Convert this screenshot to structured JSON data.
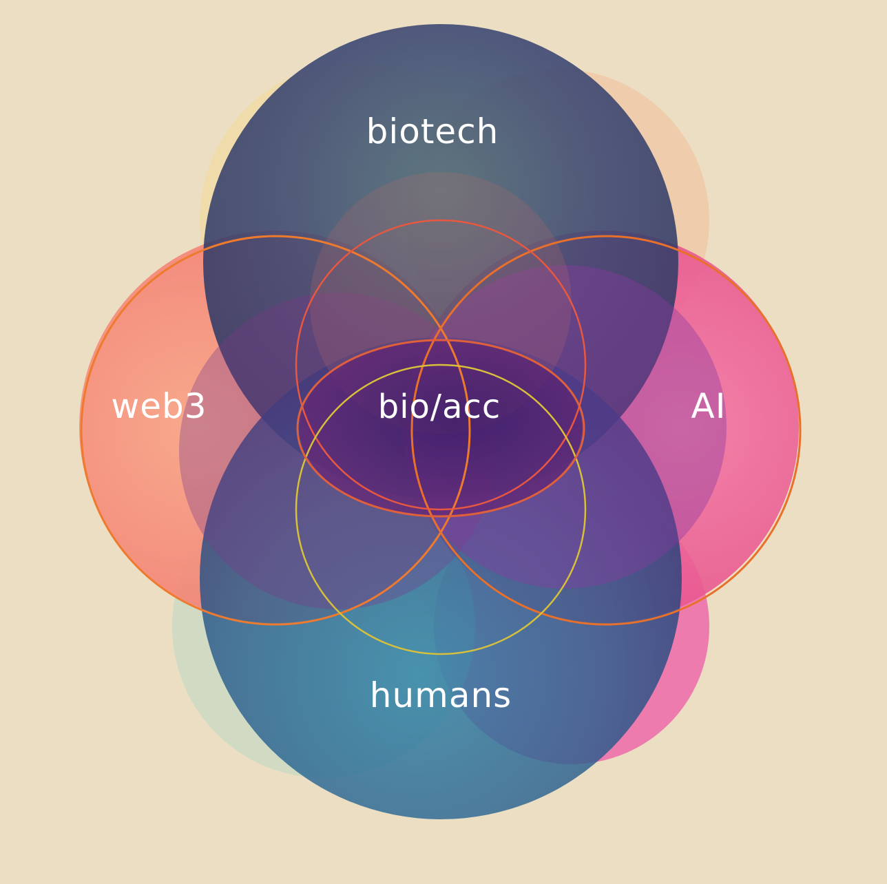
{
  "colors": {
    "background": "#ebdec3",
    "biotech": "#35406a",
    "humans": "#276a90",
    "web3": "#f78a7e",
    "ai": "#ec5a95",
    "ring_web3": "#ee7a2e",
    "ring_ai": "#e8702a",
    "ring_center": "#e0603c",
    "ring_accent": "#c9d23a",
    "label": "#ffffff"
  },
  "diagram": {
    "sets": [
      {
        "key": "biotech",
        "label": "biotech"
      },
      {
        "key": "web3",
        "label": "web3"
      },
      {
        "key": "ai",
        "label": "AI"
      },
      {
        "key": "humans",
        "label": "humans"
      }
    ],
    "intersection_label": "bio/acc"
  }
}
